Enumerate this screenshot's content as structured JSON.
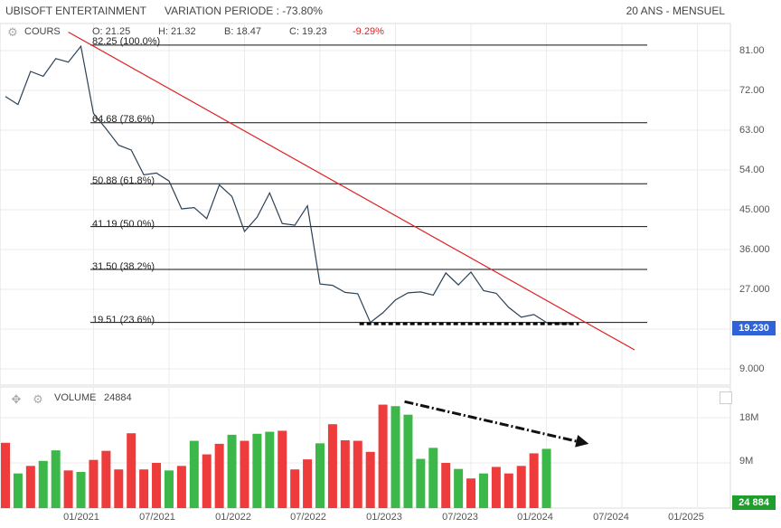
{
  "header": {
    "title": "UBISOFT ENTERTAINMENT",
    "variation": "VARIATION PERIODE : -73.80%",
    "period": "20 ANS - MENSUEL"
  },
  "legend": {
    "name": "COURS",
    "open": "O: 21.25",
    "high": "H: 21.32",
    "low": "B: 18.47",
    "close": "C: 19.23",
    "change": "-9.29%"
  },
  "volume_legend": {
    "name": "VOLUME",
    "value": "24884"
  },
  "tags": {
    "price": "19.230",
    "volume": "24 884"
  },
  "colors": {
    "price_line": "#2b4157",
    "trend_line": "#e02020",
    "vol_up": "#3cb84a",
    "vol_down": "#ee3b3b",
    "change_neg": "#e02020",
    "price_tag": "#2f63d6",
    "volume_tag": "#1f9e2c"
  },
  "chart_data": [
    {
      "type": "line",
      "title": "COURS",
      "ylim": [
        3.5,
        86
      ],
      "y_ticks": [
        "81.00",
        "72.00",
        "63.00",
        "54.00",
        "45.000",
        "36.000",
        "27.000",
        "9.000"
      ],
      "x_ticks": [
        "01/2021",
        "07/2021",
        "01/2022",
        "07/2022",
        "01/2023",
        "07/2023",
        "01/2024",
        "07/2024",
        "01/2025"
      ],
      "series": [
        {
          "x": [
            "2020-06",
            "2020-07",
            "2020-08",
            "2020-09",
            "2020-10",
            "2020-11",
            "2020-12",
            "2021-01",
            "2021-02",
            "2021-03",
            "2021-04",
            "2021-05",
            "2021-06",
            "2021-07",
            "2021-08",
            "2021-09",
            "2021-10",
            "2021-11",
            "2021-12",
            "2022-01",
            "2022-02",
            "2022-03",
            "2022-04",
            "2022-05",
            "2022-06",
            "2022-07",
            "2022-08",
            "2022-09",
            "2022-10",
            "2022-11",
            "2022-12",
            "2023-01",
            "2023-02",
            "2023-03",
            "2023-04",
            "2023-05",
            "2023-06",
            "2023-07",
            "2023-08",
            "2023-09",
            "2023-10",
            "2023-11",
            "2023-12",
            "2024-01",
            "2024-02",
            "2024-03"
          ],
          "values": [
            70.6,
            68.8,
            76.3,
            75.2,
            79.2,
            78.4,
            82.0,
            66.8,
            63.3,
            59.6,
            58.5,
            52.9,
            53.3,
            51.5,
            45.2,
            45.5,
            43.0,
            50.6,
            48.0,
            40.1,
            43.3,
            48.8,
            41.9,
            41.5,
            45.9,
            28.2,
            27.9,
            26.3,
            26.0,
            19.5,
            21.7,
            24.6,
            26.2,
            26.4,
            25.7,
            30.7,
            28.0,
            30.9,
            26.7,
            26.1,
            22.9,
            20.7,
            21.3,
            19.5,
            19.2,
            19.23
          ]
        }
      ],
      "fibonacci": [
        {
          "value": 82.25,
          "label": "82.25  (100.0%)"
        },
        {
          "value": 64.68,
          "label": "64.68  (78.6%)"
        },
        {
          "value": 50.88,
          "label": "50.88  (61.8%)"
        },
        {
          "value": 41.19,
          "label": "41.19  (50.0%)"
        },
        {
          "value": 31.5,
          "label": "31.50  (38.2%)"
        },
        {
          "value": 19.51,
          "label": "19.51  (23.6%)"
        }
      ],
      "trendline": {
        "from": {
          "x": "2020-11",
          "y": 85.2
        },
        "to": {
          "x": "2024-08",
          "y": 13.3
        }
      },
      "support_dashed": {
        "from": "2022-11",
        "to": "2024-03",
        "y": 19.2
      }
    },
    {
      "type": "bar",
      "title": "VOLUME",
      "y_ticks": [
        "18M",
        "9M"
      ],
      "ylim": [
        0,
        24
      ],
      "categories": [
        "2020-06",
        "2020-07",
        "2020-08",
        "2020-09",
        "2020-10",
        "2020-11",
        "2020-12",
        "2021-01",
        "2021-02",
        "2021-03",
        "2021-04",
        "2021-05",
        "2021-06",
        "2021-07",
        "2021-08",
        "2021-09",
        "2021-10",
        "2021-11",
        "2021-12",
        "2022-01",
        "2022-02",
        "2022-03",
        "2022-04",
        "2022-05",
        "2022-06",
        "2022-07",
        "2022-08",
        "2022-09",
        "2022-10",
        "2022-11",
        "2022-12",
        "2023-01",
        "2023-02",
        "2023-03",
        "2023-04",
        "2023-05",
        "2023-06",
        "2023-07",
        "2023-08",
        "2023-09",
        "2023-10",
        "2023-11",
        "2023-12",
        "2024-01",
        "2024-02",
        "2024-03"
      ],
      "values": [
        13.0,
        6.9,
        8.4,
        9.4,
        11.5,
        7.5,
        7.2,
        9.6,
        11.4,
        7.7,
        14.9,
        7.7,
        9.0,
        7.5,
        8.4,
        13.4,
        10.7,
        12.8,
        14.6,
        13.4,
        14.8,
        15.2,
        15.4,
        7.7,
        9.7,
        12.9,
        16.7,
        13.5,
        13.4,
        11.2,
        20.6,
        20.3,
        18.6,
        9.8,
        12.0,
        9.0,
        7.8,
        5.9,
        6.9,
        8.2,
        6.9,
        8.4,
        10.9,
        11.8,
        0,
        0
      ],
      "colors": [
        "down",
        "up",
        "down",
        "up",
        "up",
        "down",
        "up",
        "down",
        "down",
        "down",
        "down",
        "down",
        "down",
        "up",
        "down",
        "up",
        "down",
        "down",
        "up",
        "down",
        "up",
        "up",
        "down",
        "down",
        "down",
        "up",
        "down",
        "down",
        "down",
        "down",
        "down",
        "up",
        "up",
        "up",
        "up",
        "down",
        "up",
        "down",
        "up",
        "down",
        "down",
        "down",
        "down",
        "up",
        "up",
        "up"
      ],
      "trend_arrow": {
        "from": {
          "x": "2023-01",
          "y": 21.2
        },
        "to": {
          "x": "2024-04",
          "y": 12.8
        }
      }
    }
  ]
}
